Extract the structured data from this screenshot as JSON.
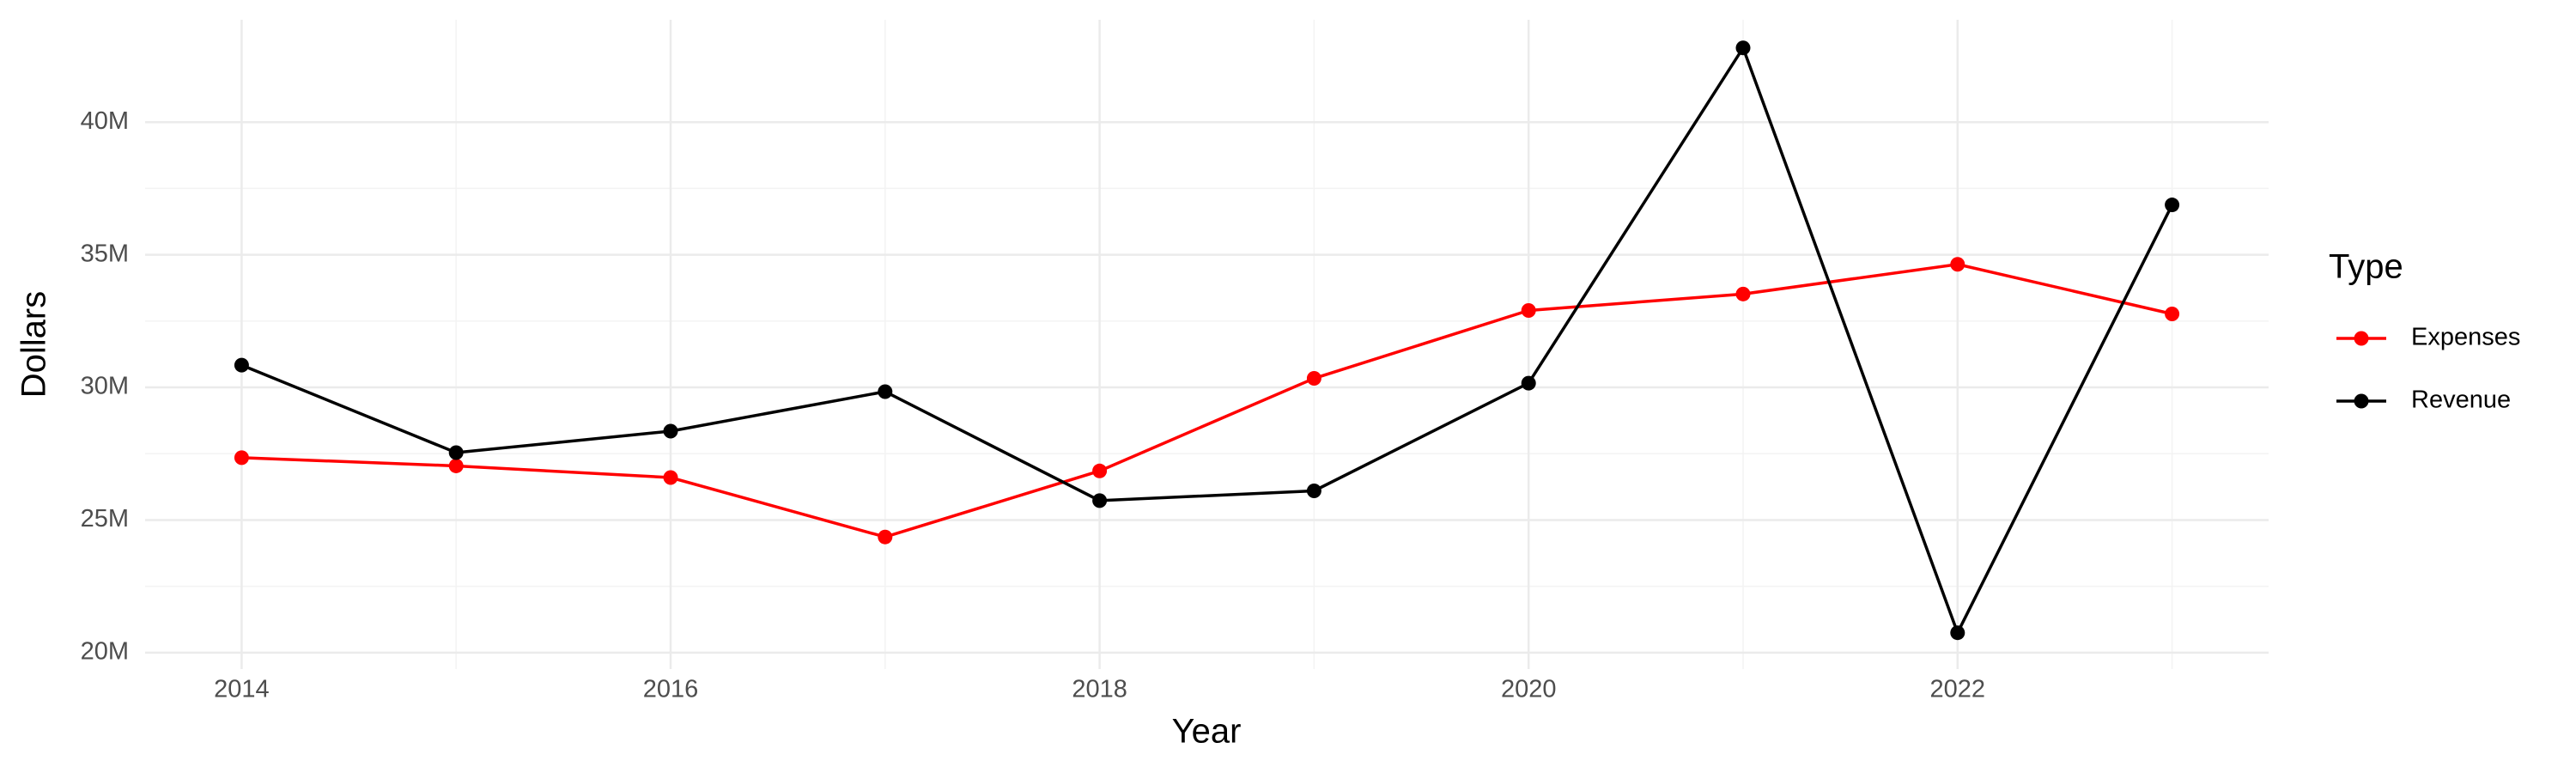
{
  "chart_data": {
    "type": "line",
    "x_label": "Year",
    "y_label": "Dollars",
    "legend_title": "Type",
    "x": [
      2014,
      2015,
      2016,
      2017,
      2018,
      2019,
      2020,
      2021,
      2022,
      2023
    ],
    "series": [
      {
        "name": "Expenses",
        "color": "#ff0000",
        "values": [
          27350000,
          27040000,
          26600000,
          24360000,
          26850000,
          30340000,
          32900000,
          33520000,
          34640000,
          32770000
        ]
      },
      {
        "name": "Revenue",
        "color": "#000000",
        "values": [
          30840000,
          27540000,
          28350000,
          29840000,
          25730000,
          26100000,
          30160000,
          42800000,
          20750000,
          36880000
        ]
      }
    ],
    "xlim": [
      2013.55,
      2023.45
    ],
    "xticks": [
      2014,
      2016,
      2018,
      2020,
      2022
    ],
    "ylim": [
      19380000,
      43860000
    ],
    "yticks": [
      {
        "value": 20000000,
        "label": "20M"
      },
      {
        "value": 25000000,
        "label": "25M"
      },
      {
        "value": 30000000,
        "label": "30M"
      },
      {
        "value": 35000000,
        "label": "35M"
      },
      {
        "value": 40000000,
        "label": "40M"
      }
    ],
    "grid": true,
    "legend": "right"
  }
}
